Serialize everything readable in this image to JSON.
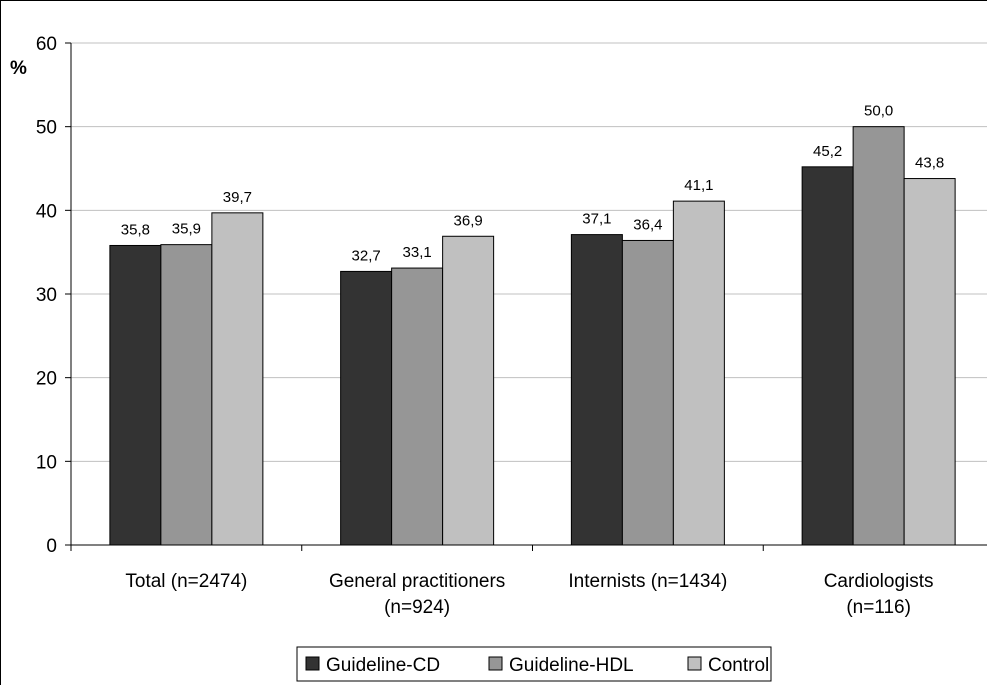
{
  "chart_data": {
    "type": "bar",
    "title": "",
    "xlabel": "",
    "ylabel": "%",
    "ylim": [
      0,
      60
    ],
    "yticks": [
      0,
      10,
      20,
      30,
      40,
      50,
      60
    ],
    "grid": true,
    "legend_position": "bottom",
    "categories": [
      [
        "Total (n=2474)"
      ],
      [
        "General practitioners",
        "(n=924)"
      ],
      [
        "Internists (n=1434)"
      ],
      [
        "Cardiologists",
        "(n=116)"
      ]
    ],
    "series": [
      {
        "name": "Guideline-CD",
        "color": "#333333",
        "values": [
          35.8,
          32.7,
          37.1,
          45.2
        ],
        "labels": [
          "35,8",
          "32,7",
          "37,1",
          "45,2"
        ]
      },
      {
        "name": "Guideline-HDL",
        "color": "#969696",
        "values": [
          35.9,
          33.1,
          36.4,
          50.0
        ],
        "labels": [
          "35,9",
          "33,1",
          "36,4",
          "50,0"
        ]
      },
      {
        "name": "Control",
        "color": "#c0c0c0",
        "values": [
          39.7,
          36.9,
          41.1,
          43.8
        ],
        "labels": [
          "39,7",
          "36,9",
          "41,1",
          "43,8"
        ]
      }
    ]
  }
}
